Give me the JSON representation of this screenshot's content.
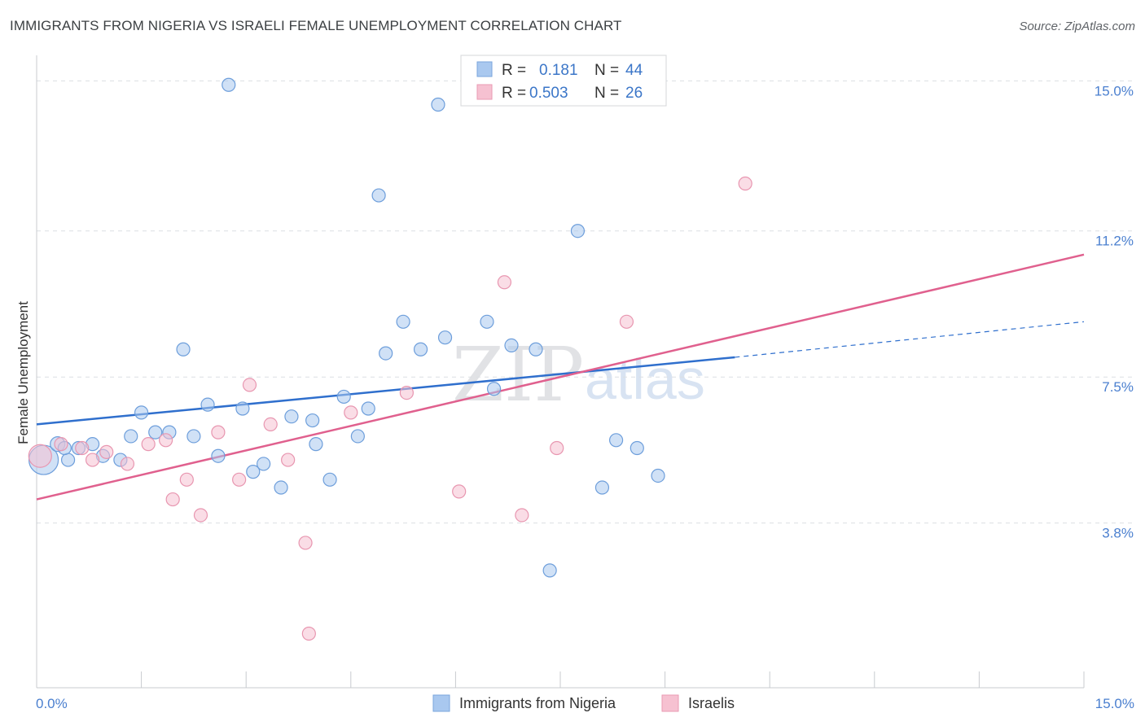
{
  "header": {
    "title": "IMMIGRANTS FROM NIGERIA VS ISRAELI FEMALE UNEMPLOYMENT CORRELATION CHART",
    "source": "Source: ZipAtlas.com"
  },
  "watermark": {
    "zip": "ZIP",
    "atlas": "atlas"
  },
  "stats_legend": [
    {
      "r_label": "R =",
      "r_value": "0.181",
      "n_label": "N =",
      "n_value": "44",
      "color": "#a9c8ef",
      "stroke": "#7aa6dc"
    },
    {
      "r_label": "R =",
      "r_value": "0.503",
      "n_label": "N =",
      "n_value": "26",
      "color": "#f6c1d1",
      "stroke": "#e99ab3"
    }
  ],
  "chart_data": {
    "type": "scatter",
    "title": "IMMIGRANTS FROM NIGERIA VS ISRAELI FEMALE UNEMPLOYMENT CORRELATION CHART",
    "xlabel": "",
    "ylabel": "Female Unemployment",
    "xlim": [
      0,
      15
    ],
    "ylim": [
      0,
      15.4
    ],
    "x_tick_labels": [
      "0.0%",
      "15.0%"
    ],
    "y_ticks": [
      3.8,
      7.5,
      11.2,
      15.0
    ],
    "y_tick_labels": [
      "3.8%",
      "7.5%",
      "11.2%",
      "15.0%"
    ],
    "grid": true,
    "legend_position": "bottom",
    "series": [
      {
        "name": "Immigrants from Nigeria",
        "color": "#a9c8ef",
        "stroke": "#6d9edb",
        "line_color": "#2f6fcd",
        "trend": {
          "x_start": 0.0,
          "y_start": 6.3,
          "x_solid_end": 10.0,
          "y_solid_end": 8.0,
          "x_dash_end": 15.0,
          "y_dash_end": 8.9
        },
        "points": [
          [
            0.1,
            5.4,
            18
          ],
          [
            0.3,
            5.8,
            9
          ],
          [
            0.45,
            5.4,
            8
          ],
          [
            0.6,
            5.7,
            8
          ],
          [
            0.8,
            5.8,
            8
          ],
          [
            0.95,
            5.5,
            8
          ],
          [
            1.2,
            5.4,
            8
          ],
          [
            1.35,
            6.0,
            8
          ],
          [
            1.5,
            6.6,
            8
          ],
          [
            1.7,
            6.1,
            8
          ],
          [
            1.9,
            6.1,
            8
          ],
          [
            2.1,
            8.2,
            8
          ],
          [
            2.25,
            6.0,
            8
          ],
          [
            2.45,
            6.8,
            8
          ],
          [
            2.6,
            5.5,
            8
          ],
          [
            2.75,
            14.9,
            8
          ],
          [
            2.95,
            6.7,
            8
          ],
          [
            3.1,
            5.1,
            8
          ],
          [
            3.25,
            5.3,
            8
          ],
          [
            3.5,
            4.7,
            8
          ],
          [
            3.65,
            6.5,
            8
          ],
          [
            3.95,
            6.4,
            8
          ],
          [
            4.0,
            5.8,
            8
          ],
          [
            4.2,
            4.9,
            8
          ],
          [
            4.4,
            7.0,
            8
          ],
          [
            4.6,
            6.0,
            8
          ],
          [
            4.75,
            6.7,
            8
          ],
          [
            4.9,
            12.1,
            8
          ],
          [
            5.0,
            8.1,
            8
          ],
          [
            5.25,
            8.9,
            8
          ],
          [
            5.5,
            8.2,
            8
          ],
          [
            5.75,
            14.4,
            8
          ],
          [
            5.85,
            8.5,
            8
          ],
          [
            6.45,
            8.9,
            8
          ],
          [
            6.55,
            7.2,
            8
          ],
          [
            6.8,
            8.3,
            8
          ],
          [
            7.15,
            8.2,
            8
          ],
          [
            7.35,
            2.6,
            8
          ],
          [
            7.75,
            11.2,
            8
          ],
          [
            8.1,
            4.7,
            8
          ],
          [
            8.3,
            5.9,
            8
          ],
          [
            8.6,
            5.7,
            8
          ],
          [
            8.9,
            5.0,
            8
          ],
          [
            0.4,
            5.7,
            8
          ]
        ]
      },
      {
        "name": "Israelis",
        "color": "#f6c1d1",
        "stroke": "#e896b0",
        "line_color": "#e0608e",
        "trend": {
          "x_start": 0.0,
          "y_start": 4.4,
          "x_end": 15.0,
          "y_end": 10.6
        },
        "points": [
          [
            0.05,
            5.5,
            14
          ],
          [
            0.35,
            5.8,
            8
          ],
          [
            0.65,
            5.7,
            8
          ],
          [
            0.8,
            5.4,
            8
          ],
          [
            1.0,
            5.6,
            8
          ],
          [
            1.3,
            5.3,
            8
          ],
          [
            1.6,
            5.8,
            8
          ],
          [
            1.85,
            5.9,
            8
          ],
          [
            1.95,
            4.4,
            8
          ],
          [
            2.15,
            4.9,
            8
          ],
          [
            2.35,
            4.0,
            8
          ],
          [
            2.6,
            6.1,
            8
          ],
          [
            2.9,
            4.9,
            8
          ],
          [
            3.05,
            7.3,
            8
          ],
          [
            3.35,
            6.3,
            8
          ],
          [
            3.6,
            5.4,
            8
          ],
          [
            3.85,
            3.3,
            8
          ],
          [
            3.9,
            1.0,
            8
          ],
          [
            4.5,
            6.6,
            8
          ],
          [
            5.3,
            7.1,
            8
          ],
          [
            6.05,
            4.6,
            8
          ],
          [
            6.7,
            9.9,
            8
          ],
          [
            6.95,
            4.0,
            8
          ],
          [
            7.45,
            5.7,
            8
          ],
          [
            8.45,
            8.9,
            8
          ],
          [
            10.15,
            12.4,
            8
          ]
        ]
      }
    ]
  }
}
